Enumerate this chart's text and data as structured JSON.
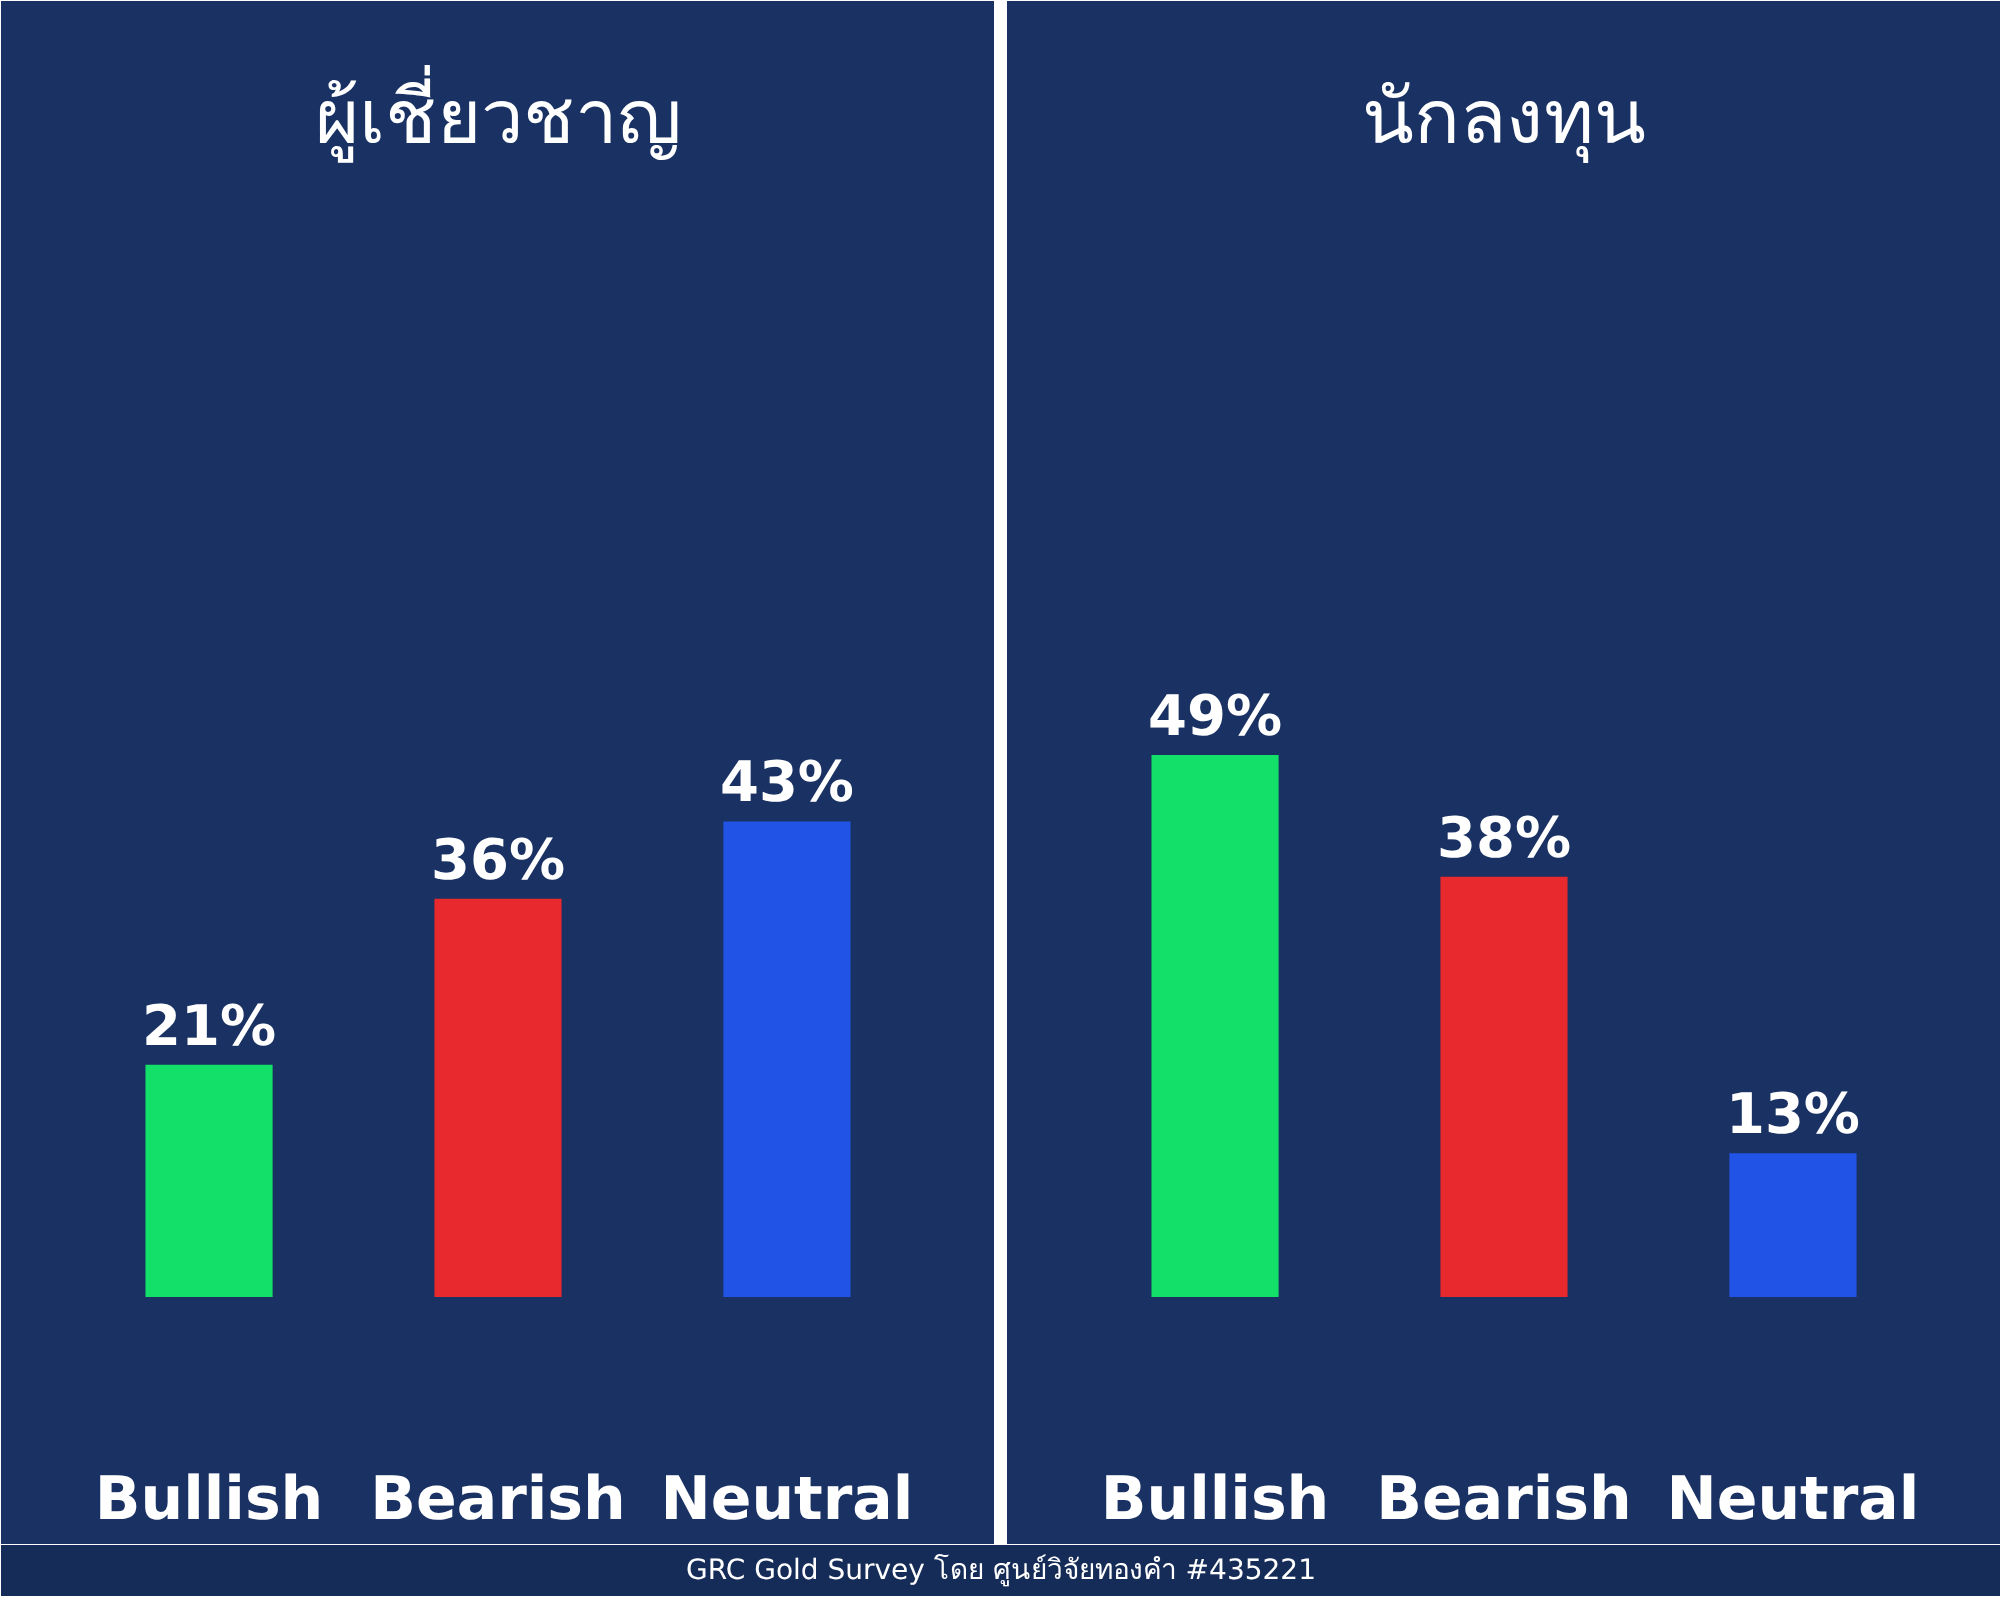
{
  "chart_data": [
    {
      "type": "bar",
      "title": "ผู้เชี่ยวชาญ",
      "categories": [
        "Bullish",
        "Bearish",
        "Neutral"
      ],
      "values": [
        21,
        36,
        43
      ],
      "value_labels": [
        "21%",
        "36%",
        "43%"
      ],
      "colors": [
        "#12e068",
        "#e8292d",
        "#2153e6"
      ],
      "ylim": [
        0,
        100
      ],
      "tick_labels": "x",
      "annotations": [
        "GRC Gold Survey โดย ศูนย์วิจัยทองคำ #435221"
      ]
    },
    {
      "type": "bar",
      "title": "นักลงทุน",
      "categories": [
        "Bullish",
        "Bearish",
        "Neutral"
      ],
      "values": [
        49,
        38,
        13
      ],
      "value_labels": [
        "49%",
        "38%",
        "13%"
      ],
      "colors": [
        "#12e068",
        "#e8292d",
        "#2153e6"
      ],
      "ylim": [
        0,
        100
      ],
      "tick_labels": "x"
    }
  ]
}
